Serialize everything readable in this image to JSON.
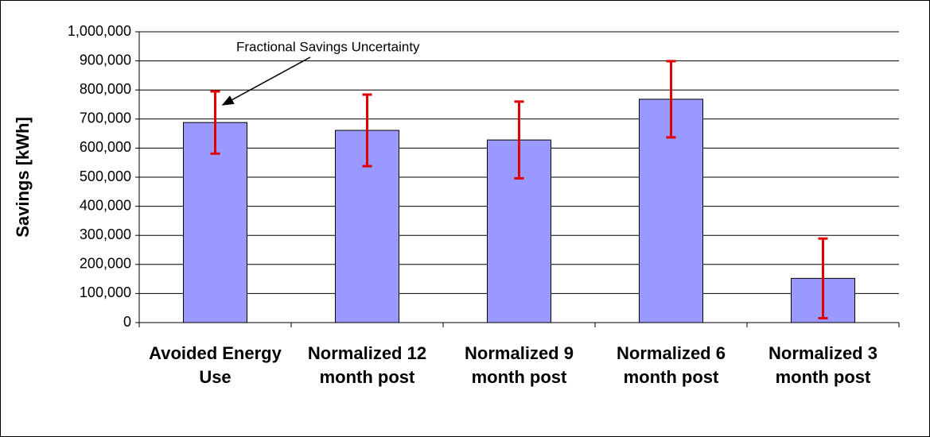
{
  "chart_data": {
    "type": "bar",
    "ylabel": "Savings [kWh]",
    "annotation": "Fractional Savings Uncertainty",
    "categories": [
      "Avoided Energy Use",
      "Normalized 12 month post",
      "Normalized 9 month post",
      "Normalized 6 month post",
      "Normalized 3 month post"
    ],
    "values": [
      688000,
      661000,
      628000,
      768000,
      152000
    ],
    "errors": [
      107000,
      123000,
      132000,
      131000,
      137000
    ],
    "color": "#9999ff",
    "error_color": "#e00000",
    "ylim": [
      0,
      1000000
    ],
    "yticks": [
      0,
      {
        "value": 100000,
        "label": "100,000"
      },
      {
        "value": 200000,
        "label": "200,000"
      },
      {
        "value": 300000,
        "label": "300,000"
      },
      {
        "value": 400000,
        "label": "400,000"
      },
      {
        "value": 500000,
        "label": "500,000"
      },
      {
        "value": 600000,
        "label": "600,000"
      },
      {
        "value": 700000,
        "label": "700,000"
      },
      {
        "value": 800000,
        "label": "800,000"
      },
      {
        "value": 900000,
        "label": "900,000"
      },
      {
        "value": 1000000,
        "label": "1,000,000"
      }
    ],
    "grid": true
  }
}
